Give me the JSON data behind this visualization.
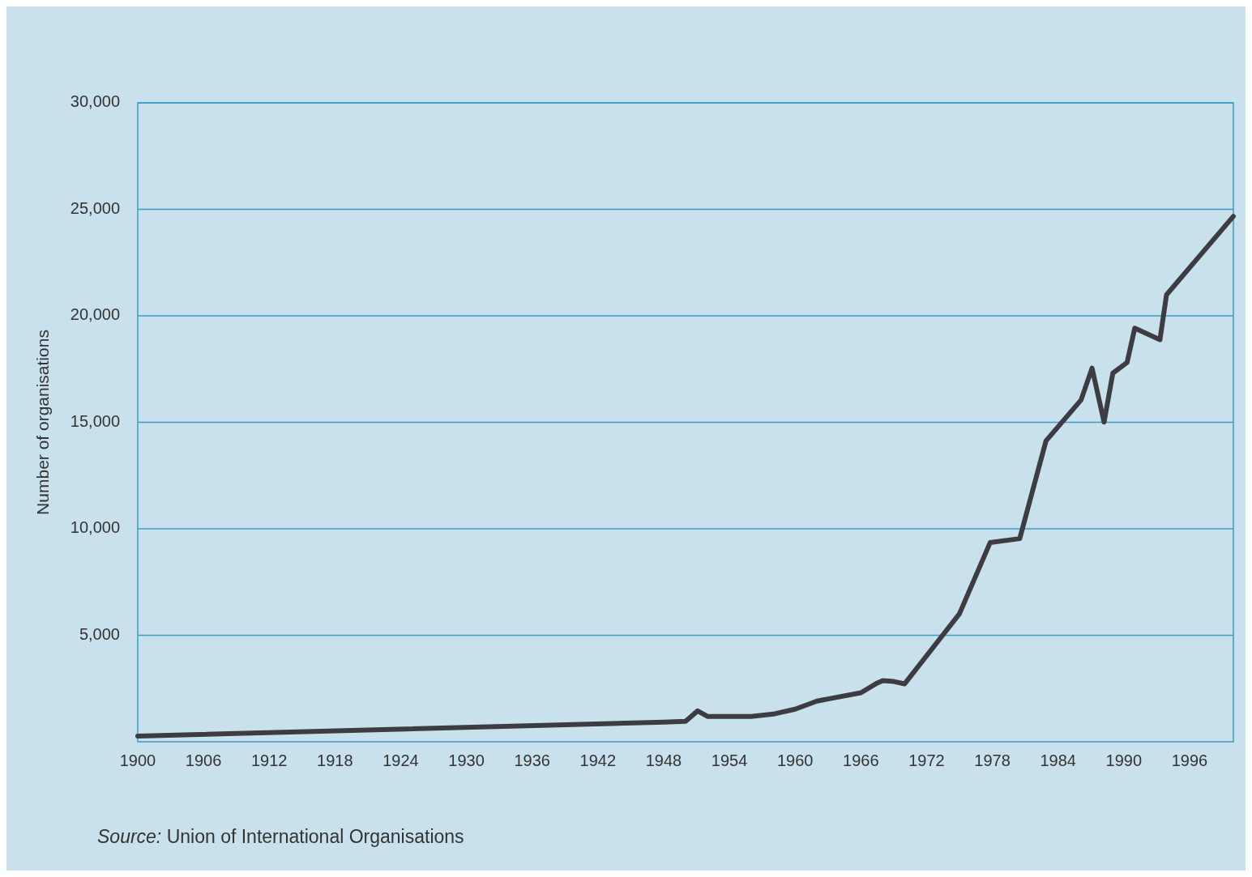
{
  "chart_data": {
    "type": "line",
    "ylabel": "Number of organisations",
    "annotations": [
      "Source: Union of International Organisations"
    ],
    "x": [
      1900,
      1948,
      1950,
      1951.1,
      1952,
      1956,
      1958,
      1960,
      1962,
      1966,
      1967.5,
      1968,
      1969,
      1970,
      1975,
      1977.8,
      1980.5,
      1982.9,
      1986.1,
      1987.1,
      1988.2,
      1989,
      1990.3,
      1991,
      1993.3,
      1993.9,
      2000
    ],
    "series": [
      {
        "color": "#3c3c42",
        "values": [
          270,
          920,
          960,
          1450,
          1190,
          1190,
          1300,
          1530,
          1910,
          2300,
          2760,
          2870,
          2830,
          2720,
          6010,
          9350,
          9540,
          14130,
          16050,
          17540,
          15010,
          17310,
          17810,
          19420,
          18880,
          20990,
          24670
        ]
      }
    ],
    "xlim": [
      1900,
      2000
    ],
    "xticks": [
      1900,
      1906,
      1912,
      1918,
      1924,
      1930,
      1936,
      1942,
      1948,
      1954,
      1960,
      1966,
      1972,
      1978,
      1984,
      1990,
      1996
    ],
    "ylim": [
      0,
      30000
    ],
    "yticks": [
      {
        "value": 5000,
        "label": "5,000"
      },
      {
        "value": 10000,
        "label": "10,000"
      },
      {
        "value": 15000,
        "label": "15,000"
      },
      {
        "value": 20000,
        "label": "20,000"
      },
      {
        "value": 25000,
        "label": "25,000"
      },
      {
        "value": 30000,
        "label": "30,000"
      }
    ],
    "grid": "y",
    "marker": "none",
    "line_style": "solid"
  }
}
